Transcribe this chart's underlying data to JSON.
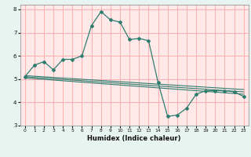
{
  "xlabel": "Humidex (Indice chaleur)",
  "bg_color": "#e8f4f0",
  "plot_bg_color": "#ffe8e8",
  "grid_color": "#ffb0b0",
  "line_color": "#2e7d6e",
  "xlim": [
    -0.5,
    23.5
  ],
  "ylim": [
    3,
    8.2
  ],
  "xticks": [
    0,
    1,
    2,
    3,
    4,
    5,
    6,
    7,
    8,
    9,
    10,
    11,
    12,
    13,
    14,
    15,
    16,
    17,
    18,
    19,
    20,
    21,
    22,
    23
  ],
  "yticks": [
    3,
    4,
    5,
    6,
    7,
    8
  ],
  "main_x": [
    0,
    1,
    2,
    3,
    4,
    5,
    6,
    7,
    8,
    9,
    10,
    11,
    12,
    13,
    14,
    15,
    16,
    17,
    18,
    19,
    20,
    21,
    22,
    23
  ],
  "main_y": [
    5.1,
    5.6,
    5.75,
    5.4,
    5.85,
    5.85,
    6.0,
    7.3,
    7.9,
    7.55,
    7.45,
    6.7,
    6.75,
    6.65,
    4.85,
    3.4,
    3.45,
    3.75,
    4.35,
    4.5,
    4.5,
    4.5,
    4.45,
    4.25
  ],
  "trend1_x": [
    0,
    23
  ],
  "trend1_y": [
    5.15,
    4.55
  ],
  "trend2_x": [
    0,
    23
  ],
  "trend2_y": [
    5.1,
    4.45
  ],
  "trend3_x": [
    0,
    23
  ],
  "trend3_y": [
    5.05,
    4.35
  ]
}
